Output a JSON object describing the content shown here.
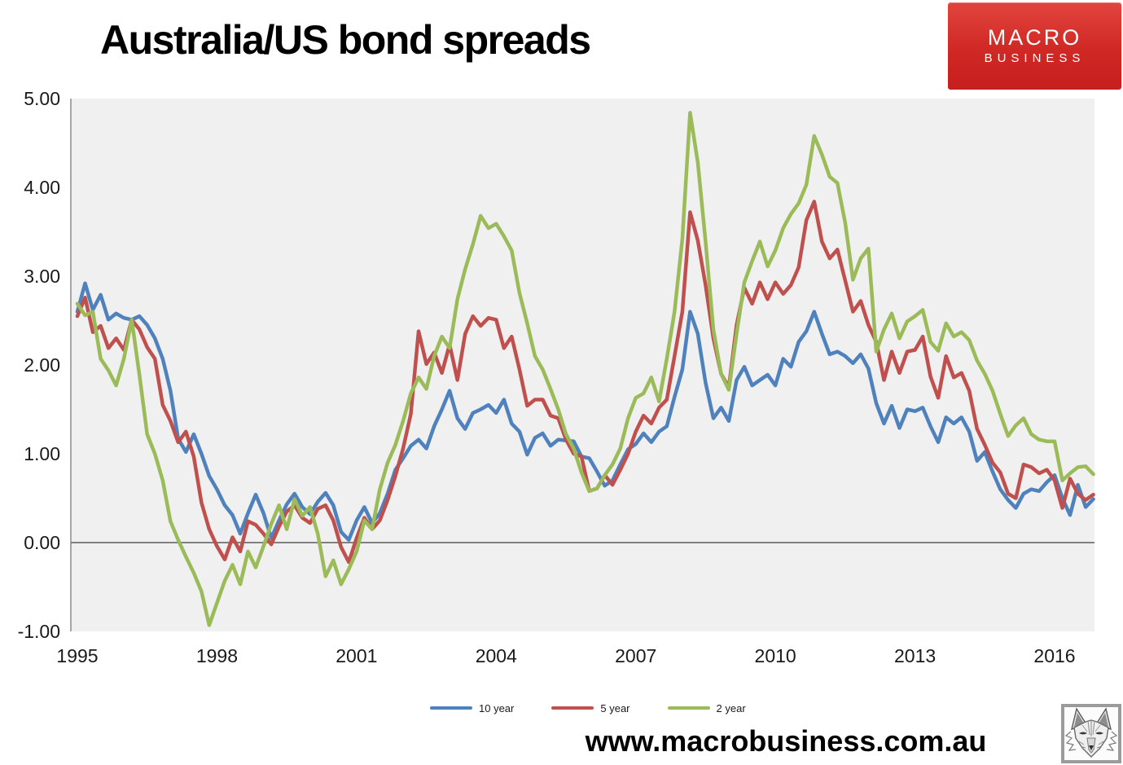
{
  "logo": {
    "line1": "MACRO",
    "line2": "BUSINESS",
    "bg_color": "#d02824",
    "text_color": "#ffffff"
  },
  "footer": {
    "url": "www.macrobusiness.com.au",
    "wolf_icon": "wolf-sketch-logo"
  },
  "chart_data": {
    "type": "line",
    "title": "Australia/US bond spreads",
    "xlabel": "",
    "ylabel": "",
    "x_start": 1995.0,
    "x_step_years": 0.1666667,
    "x_ticks": [
      "1995",
      "1998",
      "2001",
      "2004",
      "2007",
      "2010",
      "2013",
      "2016"
    ],
    "y_ticks": [
      "5.00",
      "4.00",
      "3.00",
      "2.00",
      "1.00",
      "0.00",
      "-1.00"
    ],
    "ylim": [
      -1.0,
      5.0
    ],
    "xlim": [
      1994.85,
      2016.9
    ],
    "grid": "zero-line-only",
    "legend_position": "bottom",
    "plot_bg": "#f0f0f0",
    "zero_line_color": "#808080",
    "axis_line_color": "#a6a6a6",
    "tick_label_color": "#1a1a1a",
    "series": [
      {
        "name": "10 year",
        "color": "#4f81bd",
        "values": [
          2.6,
          2.92,
          2.62,
          2.79,
          2.51,
          2.58,
          2.53,
          2.51,
          2.55,
          2.45,
          2.3,
          2.07,
          1.71,
          1.17,
          1.02,
          1.22,
          1.0,
          0.75,
          0.6,
          0.42,
          0.31,
          0.1,
          0.33,
          0.54,
          0.33,
          0.05,
          0.25,
          0.43,
          0.55,
          0.4,
          0.32,
          0.46,
          0.56,
          0.42,
          0.12,
          0.03,
          0.25,
          0.4,
          0.22,
          0.33,
          0.55,
          0.82,
          0.95,
          1.09,
          1.16,
          1.06,
          1.31,
          1.5,
          1.71,
          1.4,
          1.28,
          1.46,
          1.5,
          1.55,
          1.46,
          1.61,
          1.34,
          1.25,
          0.99,
          1.18,
          1.23,
          1.09,
          1.16,
          1.15,
          1.14,
          0.97,
          0.95,
          0.8,
          0.64,
          0.7,
          0.88,
          1.05,
          1.11,
          1.23,
          1.13,
          1.25,
          1.31,
          1.64,
          1.95,
          2.6,
          2.35,
          1.8,
          1.4,
          1.52,
          1.37,
          1.83,
          1.98,
          1.77,
          1.83,
          1.89,
          1.77,
          2.07,
          1.98,
          2.26,
          2.38,
          2.6,
          2.35,
          2.12,
          2.15,
          2.1,
          2.02,
          2.12,
          1.96,
          1.57,
          1.34,
          1.54,
          1.29,
          1.5,
          1.48,
          1.52,
          1.31,
          1.13,
          1.41,
          1.34,
          1.41,
          1.25,
          0.92,
          1.02,
          0.8,
          0.6,
          0.48,
          0.39,
          0.55,
          0.6,
          0.58,
          0.68,
          0.76,
          0.5,
          0.31,
          0.65,
          0.4,
          0.49
        ]
      },
      {
        "name": "5 year",
        "color": "#c0504d",
        "values": [
          2.55,
          2.76,
          2.37,
          2.44,
          2.19,
          2.3,
          2.17,
          2.51,
          2.4,
          2.2,
          2.07,
          1.55,
          1.37,
          1.13,
          1.25,
          0.97,
          0.45,
          0.15,
          -0.04,
          -0.19,
          0.06,
          -0.1,
          0.24,
          0.2,
          0.1,
          -0.02,
          0.18,
          0.35,
          0.42,
          0.28,
          0.22,
          0.38,
          0.42,
          0.25,
          -0.05,
          -0.22,
          0.05,
          0.28,
          0.15,
          0.25,
          0.48,
          0.75,
          1.06,
          1.45,
          2.38,
          2.01,
          2.14,
          1.91,
          2.23,
          1.83,
          2.35,
          2.55,
          2.44,
          2.53,
          2.51,
          2.19,
          2.32,
          1.95,
          1.54,
          1.61,
          1.61,
          1.43,
          1.4,
          1.16,
          1.0,
          0.97,
          0.58,
          0.61,
          0.76,
          0.65,
          0.82,
          1.0,
          1.25,
          1.43,
          1.34,
          1.52,
          1.61,
          2.1,
          2.6,
          3.72,
          3.4,
          2.9,
          2.3,
          1.9,
          1.75,
          2.45,
          2.87,
          2.69,
          2.93,
          2.74,
          2.93,
          2.8,
          2.9,
          3.1,
          3.63,
          3.84,
          3.39,
          3.2,
          3.3,
          2.95,
          2.6,
          2.72,
          2.45,
          2.26,
          1.83,
          2.15,
          1.91,
          2.15,
          2.17,
          2.32,
          1.87,
          1.63,
          2.1,
          1.86,
          1.91,
          1.71,
          1.28,
          1.1,
          0.9,
          0.79,
          0.55,
          0.5,
          0.88,
          0.85,
          0.78,
          0.82,
          0.7,
          0.39,
          0.72,
          0.55,
          0.48,
          0.54
        ]
      },
      {
        "name": "2 year",
        "color": "#9bbb59",
        "values": [
          2.69,
          2.56,
          2.6,
          2.07,
          1.94,
          1.77,
          2.07,
          2.51,
          1.89,
          1.22,
          1.0,
          0.7,
          0.24,
          0.03,
          -0.16,
          -0.34,
          -0.55,
          -0.93,
          -0.68,
          -0.43,
          -0.25,
          -0.47,
          -0.1,
          -0.28,
          -0.04,
          0.21,
          0.42,
          0.15,
          0.49,
          0.3,
          0.4,
          0.1,
          -0.38,
          -0.2,
          -0.47,
          -0.3,
          -0.1,
          0.25,
          0.15,
          0.6,
          0.9,
          1.1,
          1.37,
          1.68,
          1.86,
          1.73,
          2.1,
          2.32,
          2.19,
          2.74,
          3.08,
          3.36,
          3.68,
          3.54,
          3.59,
          3.45,
          3.29,
          2.81,
          2.47,
          2.1,
          1.95,
          1.73,
          1.5,
          1.22,
          1.06,
          0.79,
          0.58,
          0.61,
          0.76,
          0.88,
          1.06,
          1.4,
          1.63,
          1.68,
          1.86,
          1.59,
          2.07,
          2.6,
          3.42,
          4.84,
          4.28,
          3.39,
          2.4,
          1.9,
          1.72,
          2.35,
          2.93,
          3.17,
          3.39,
          3.11,
          3.29,
          3.54,
          3.7,
          3.82,
          4.03,
          4.58,
          4.37,
          4.12,
          4.05,
          3.6,
          2.96,
          3.2,
          3.31,
          2.15,
          2.4,
          2.58,
          2.3,
          2.49,
          2.55,
          2.62,
          2.26,
          2.16,
          2.47,
          2.32,
          2.37,
          2.28,
          2.05,
          1.9,
          1.71,
          1.45,
          1.2,
          1.32,
          1.4,
          1.22,
          1.16,
          1.14,
          1.14,
          0.7,
          0.78,
          0.85,
          0.86,
          0.77
        ]
      }
    ]
  }
}
